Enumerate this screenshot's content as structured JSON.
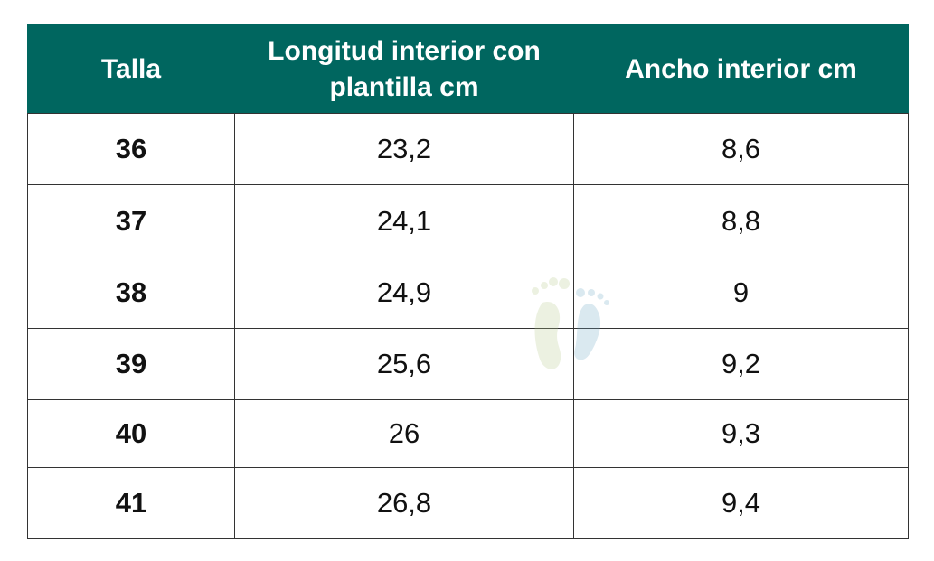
{
  "table": {
    "header": [
      "Talla",
      "Longitud interior con plantilla cm",
      "Ancho interior cm"
    ],
    "rows": [
      [
        "36",
        "23,2",
        "8,6"
      ],
      [
        "37",
        "24,1",
        "8,8"
      ],
      [
        "38",
        "24,9",
        "9"
      ],
      [
        "39",
        "25,6",
        "9,2"
      ],
      [
        "40",
        "26",
        "9,3"
      ],
      [
        "41",
        "26,8",
        "9,4"
      ]
    ]
  }
}
